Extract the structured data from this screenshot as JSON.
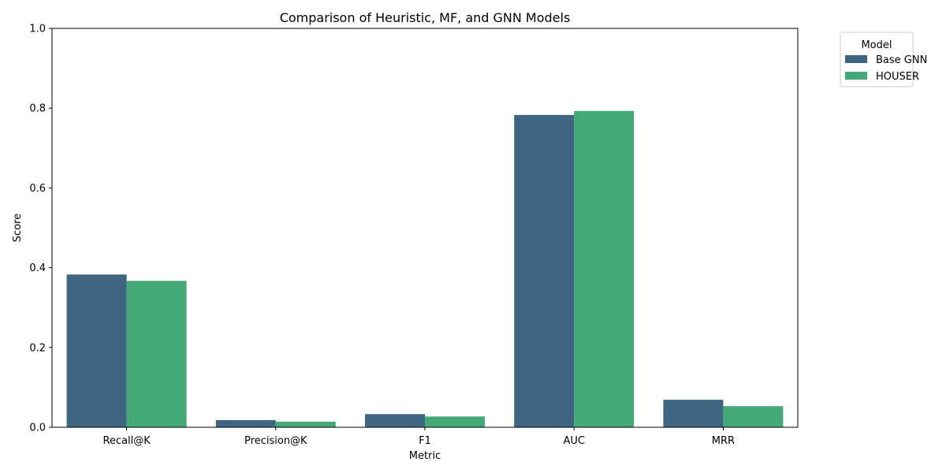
{
  "chart_data": {
    "type": "bar",
    "title": "Comparison of Heuristic, MF, and GNN Models",
    "xlabel": "Metric",
    "ylabel": "Score",
    "categories": [
      "Recall@K",
      "Precision@K",
      "F1",
      "AUC",
      "MRR"
    ],
    "ylim": [
      0,
      1.0
    ],
    "yticks": [
      "0.0",
      "0.2",
      "0.4",
      "0.6",
      "0.8",
      "1.0"
    ],
    "legend": {
      "title": "Model",
      "placement": "outside-top-right"
    },
    "grid": false,
    "series": [
      {
        "name": "Base GNN",
        "color": "#3e6683",
        "values": [
          0.383,
          0.018,
          0.033,
          0.783,
          0.069
        ]
      },
      {
        "name": "HOUSER",
        "color": "#45a877",
        "values": [
          0.367,
          0.014,
          0.027,
          0.793,
          0.053
        ]
      }
    ]
  }
}
